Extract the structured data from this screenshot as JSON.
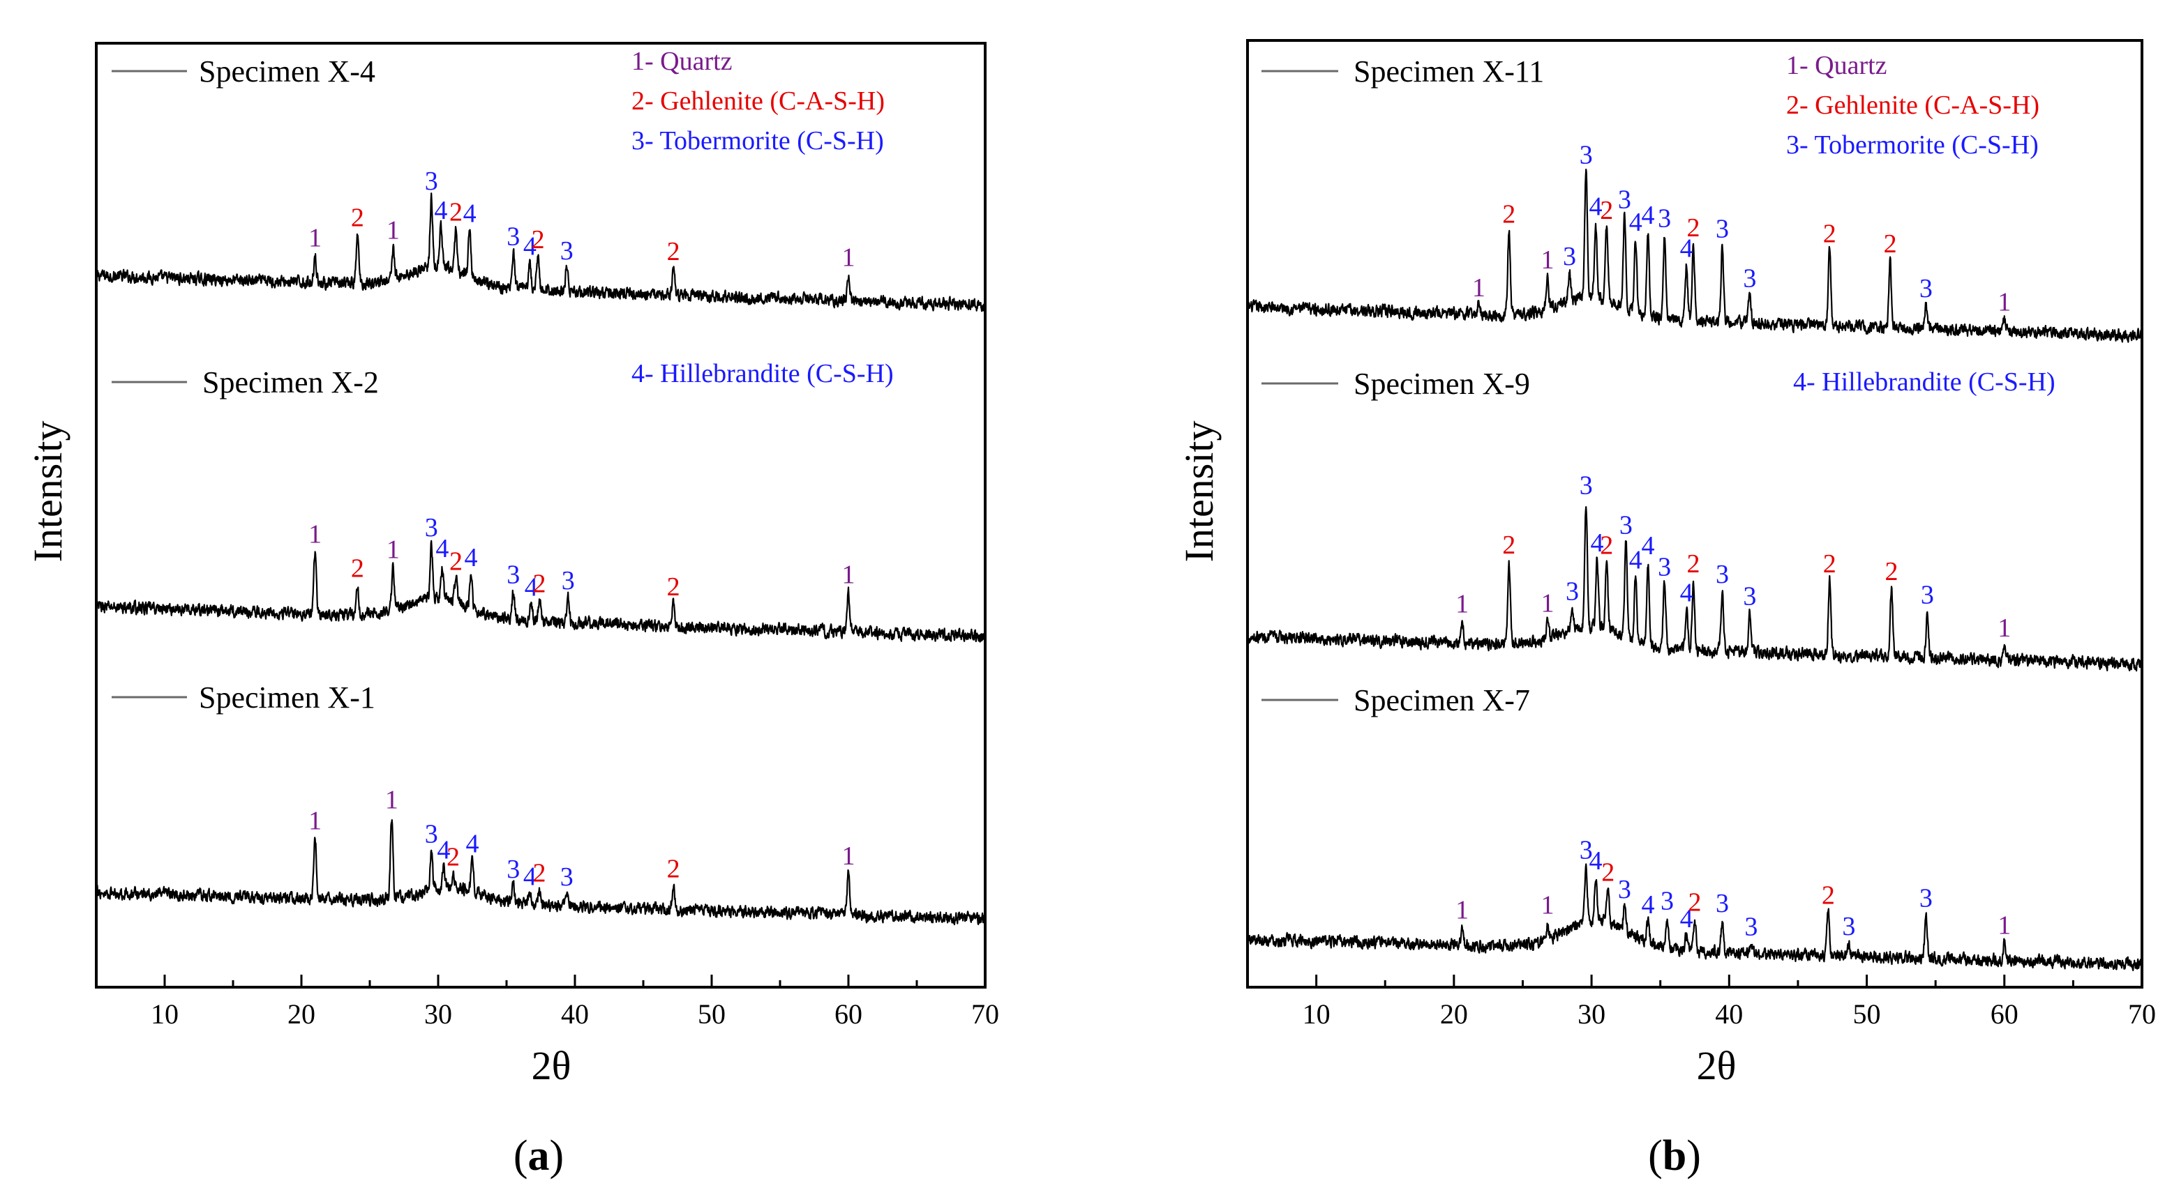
{
  "figure": {
    "x_label": "2θ",
    "y_label": "Intensity"
  },
  "phase_colors": {
    "1": "#7a1a8c",
    "2": "#e60000",
    "3": "#1a1aff",
    "4": "#1a1aff"
  },
  "chart_data": [
    {
      "type": "line",
      "panel_id": "a",
      "panel_label": "a",
      "xlim": [
        5,
        70
      ],
      "x_ticks": [
        10,
        20,
        30,
        40,
        50,
        60,
        70
      ],
      "ylabel": "Intensity",
      "xlabel": "2θ",
      "phase_key": [
        {
          "id": "1",
          "label": "1- Quartz",
          "color": "#7a1a8c",
          "row": 0
        },
        {
          "id": "2",
          "label": "2- Gehlenite (C-A-S-H)",
          "color": "#e60000",
          "row": 1
        },
        {
          "id": "3",
          "label": "3- Tobermorite (C-S-H)",
          "color": "#1a1aff",
          "row": 2
        },
        {
          "id": "4",
          "label": "4- Hillebrandite (C-S-H)",
          "color": "#1a1aff",
          "row": 3
        }
      ],
      "series": [
        {
          "name": "Specimen X-4",
          "baseline_start": 65,
          "baseline_end": 22,
          "hump_center": 30,
          "hump_height": 28,
          "peaks": [
            {
              "x": 21,
              "h": 40,
              "phase": "1",
              "label": "1"
            },
            {
              "x": 24.1,
              "h": 70,
              "phase": "2",
              "label": "2"
            },
            {
              "x": 26.7,
              "h": 45,
              "phase": "1",
              "label": "1"
            },
            {
              "x": 29.5,
              "h": 100,
              "phase": "3",
              "label": "3"
            },
            {
              "x": 30.2,
              "h": 58,
              "phase": "4",
              "label": "4"
            },
            {
              "x": 31.3,
              "h": 60,
              "phase": "2",
              "label": "2"
            },
            {
              "x": 32.3,
              "h": 66,
              "phase": "4",
              "label": "4"
            },
            {
              "x": 35.5,
              "h": 50,
              "phase": "3",
              "label": "3"
            },
            {
              "x": 36.7,
              "h": 38,
              "phase": "4",
              "label": "4"
            },
            {
              "x": 37.3,
              "h": 48,
              "phase": "2",
              "label": "2"
            },
            {
              "x": 39.4,
              "h": 34,
              "phase": "3",
              "label": "3"
            },
            {
              "x": 47.2,
              "h": 38,
              "phase": "2",
              "label": "2"
            },
            {
              "x": 60,
              "h": 38,
              "phase": "1",
              "label": "1"
            }
          ]
        },
        {
          "name": "Specimen X-2",
          "baseline_start": 55,
          "baseline_end": 12,
          "hump_center": 30,
          "hump_height": 28,
          "peaks": [
            {
              "x": 21,
              "h": 90,
              "phase": "1",
              "label": "1"
            },
            {
              "x": 24.1,
              "h": 42,
              "phase": "2",
              "label": "2"
            },
            {
              "x": 26.7,
              "h": 62,
              "phase": "1",
              "label": "1"
            },
            {
              "x": 29.5,
              "h": 78,
              "phase": "3",
              "label": "3"
            },
            {
              "x": 30.3,
              "h": 48,
              "phase": "4",
              "label": "4"
            },
            {
              "x": 31.3,
              "h": 34,
              "phase": "2",
              "label": "2"
            },
            {
              "x": 32.4,
              "h": 48,
              "phase": "4",
              "label": "4"
            },
            {
              "x": 35.5,
              "h": 40,
              "phase": "3",
              "label": "3"
            },
            {
              "x": 36.8,
              "h": 24,
              "phase": "4",
              "label": "4"
            },
            {
              "x": 37.4,
              "h": 30,
              "phase": "2",
              "label": "2"
            },
            {
              "x": 39.5,
              "h": 36,
              "phase": "3",
              "label": "3"
            },
            {
              "x": 47.2,
              "h": 32,
              "phase": "2",
              "label": "2"
            },
            {
              "x": 60,
              "h": 58,
              "phase": "1",
              "label": "1"
            }
          ]
        },
        {
          "name": "Specimen X-1",
          "baseline_start": 50,
          "baseline_end": 12,
          "hump_center": 31,
          "hump_height": 22,
          "peaks": [
            {
              "x": 21,
              "h": 88,
              "phase": "1",
              "label": "1"
            },
            {
              "x": 26.6,
              "h": 118,
              "phase": "1",
              "label": "1"
            },
            {
              "x": 29.5,
              "h": 56,
              "phase": "3",
              "label": "3"
            },
            {
              "x": 30.4,
              "h": 30,
              "phase": "4",
              "label": "4"
            },
            {
              "x": 31.1,
              "h": 20,
              "phase": "2",
              "label": "2"
            },
            {
              "x": 32.5,
              "h": 44,
              "phase": "4",
              "label": "4"
            },
            {
              "x": 35.5,
              "h": 24,
              "phase": "3",
              "label": "3"
            },
            {
              "x": 36.7,
              "h": 16,
              "phase": "4",
              "label": "4"
            },
            {
              "x": 37.4,
              "h": 22,
              "phase": "2",
              "label": "2"
            },
            {
              "x": 39.4,
              "h": 18,
              "phase": "3",
              "label": "3"
            },
            {
              "x": 47.2,
              "h": 34,
              "phase": "2",
              "label": "2"
            },
            {
              "x": 60,
              "h": 60,
              "phase": "1",
              "label": "1"
            }
          ]
        }
      ]
    },
    {
      "type": "line",
      "panel_id": "b",
      "panel_label": "b",
      "xlim": [
        5,
        70
      ],
      "x_ticks": [
        10,
        20,
        30,
        40,
        50,
        60,
        70
      ],
      "ylabel": "Intensity",
      "xlabel": "2θ",
      "phase_key": [
        {
          "id": "1",
          "label": "1- Quartz",
          "color": "#7a1a8c",
          "row": 0
        },
        {
          "id": "2",
          "label": "2- Gehlenite (C-A-S-H)",
          "color": "#e60000",
          "row": 1
        },
        {
          "id": "3",
          "label": "3- Tobermorite (C-S-H)",
          "color": "#1a1aff",
          "row": 2
        },
        {
          "id": "4",
          "label": "4- Hillebrandite (C-S-H)",
          "color": "#1a1aff",
          "row": 3
        }
      ],
      "series": [
        {
          "name": "Specimen X-11",
          "baseline_start": 60,
          "baseline_end": 18,
          "hump_center": 30,
          "hump_height": 30,
          "peaks": [
            {
              "x": 21.8,
              "h": 14,
              "phase": "1",
              "label": "1"
            },
            {
              "x": 24,
              "h": 120,
              "phase": "2",
              "label": "2"
            },
            {
              "x": 26.8,
              "h": 46,
              "phase": "1",
              "label": "1"
            },
            {
              "x": 28.4,
              "h": 40,
              "phase": "3",
              "label": "3"
            },
            {
              "x": 29.6,
              "h": 180,
              "phase": "3",
              "label": "3"
            },
            {
              "x": 30.3,
              "h": 106,
              "phase": "4",
              "label": "4"
            },
            {
              "x": 31.1,
              "h": 104,
              "phase": "2",
              "label": "2"
            },
            {
              "x": 32.4,
              "h": 130,
              "phase": "3",
              "label": "3"
            },
            {
              "x": 33.2,
              "h": 104,
              "phase": "4",
              "label": "4"
            },
            {
              "x": 34.1,
              "h": 120,
              "phase": "4",
              "label": "4"
            },
            {
              "x": 35.3,
              "h": 120,
              "phase": "3",
              "label": "3"
            },
            {
              "x": 36.9,
              "h": 80,
              "phase": "4",
              "label": "4"
            },
            {
              "x": 37.4,
              "h": 110,
              "phase": "2",
              "label": "2"
            },
            {
              "x": 39.5,
              "h": 110,
              "phase": "3",
              "label": "3"
            },
            {
              "x": 41.5,
              "h": 40,
              "phase": "3",
              "label": "3"
            },
            {
              "x": 47.3,
              "h": 108,
              "phase": "2",
              "label": "2"
            },
            {
              "x": 51.7,
              "h": 96,
              "phase": "2",
              "label": "2"
            },
            {
              "x": 54.3,
              "h": 34,
              "phase": "3",
              "label": "3"
            },
            {
              "x": 60,
              "h": 18,
              "phase": "1",
              "label": "1"
            }
          ]
        },
        {
          "name": "Specimen X-9",
          "baseline_start": 52,
          "baseline_end": 12,
          "hump_center": 30,
          "hump_height": 30,
          "peaks": [
            {
              "x": 20.6,
              "h": 32,
              "phase": "1",
              "label": "1"
            },
            {
              "x": 24,
              "h": 118,
              "phase": "2",
              "label": "2"
            },
            {
              "x": 26.8,
              "h": 26,
              "phase": "1",
              "label": "1"
            },
            {
              "x": 28.6,
              "h": 30,
              "phase": "3",
              "label": "3"
            },
            {
              "x": 29.6,
              "h": 178,
              "phase": "3",
              "label": "3"
            },
            {
              "x": 30.4,
              "h": 96,
              "phase": "4",
              "label": "4"
            },
            {
              "x": 31.1,
              "h": 96,
              "phase": "2",
              "label": "2"
            },
            {
              "x": 32.5,
              "h": 136,
              "phase": "3",
              "label": "3"
            },
            {
              "x": 33.2,
              "h": 92,
              "phase": "4",
              "label": "4"
            },
            {
              "x": 34.1,
              "h": 118,
              "phase": "4",
              "label": "4"
            },
            {
              "x": 35.3,
              "h": 92,
              "phase": "3",
              "label": "3"
            },
            {
              "x": 36.9,
              "h": 58,
              "phase": "4",
              "label": "4"
            },
            {
              "x": 37.4,
              "h": 100,
              "phase": "2",
              "label": "2"
            },
            {
              "x": 39.5,
              "h": 86,
              "phase": "3",
              "label": "3"
            },
            {
              "x": 41.5,
              "h": 56,
              "phase": "3",
              "label": "3"
            },
            {
              "x": 47.3,
              "h": 106,
              "phase": "2",
              "label": "2"
            },
            {
              "x": 51.8,
              "h": 98,
              "phase": "2",
              "label": "2"
            },
            {
              "x": 54.4,
              "h": 66,
              "phase": "3",
              "label": "3"
            },
            {
              "x": 60,
              "h": 22,
              "phase": "1",
              "label": "1"
            }
          ]
        },
        {
          "name": "Specimen X-7",
          "baseline_start": 48,
          "baseline_end": 12,
          "hump_center": 30.5,
          "hump_height": 40,
          "peaks": [
            {
              "x": 20.6,
              "h": 26,
              "phase": "1",
              "label": "1"
            },
            {
              "x": 26.8,
              "h": 26,
              "phase": "1",
              "label": "1"
            },
            {
              "x": 29.6,
              "h": 80,
              "phase": "3",
              "label": "3"
            },
            {
              "x": 30.3,
              "h": 62,
              "phase": "4",
              "label": "4"
            },
            {
              "x": 31.2,
              "h": 48,
              "phase": "2",
              "label": "2"
            },
            {
              "x": 32.4,
              "h": 34,
              "phase": "3",
              "label": "3"
            },
            {
              "x": 34.1,
              "h": 30,
              "phase": "4",
              "label": "4"
            },
            {
              "x": 35.5,
              "h": 44,
              "phase": "3",
              "label": "3"
            },
            {
              "x": 36.9,
              "h": 22,
              "phase": "4",
              "label": "4"
            },
            {
              "x": 37.5,
              "h": 46,
              "phase": "2",
              "label": "2"
            },
            {
              "x": 39.5,
              "h": 46,
              "phase": "3",
              "label": "3"
            },
            {
              "x": 41.6,
              "h": 14,
              "phase": "3",
              "label": "3"
            },
            {
              "x": 47.2,
              "h": 62,
              "phase": "2",
              "label": "2"
            },
            {
              "x": 48.7,
              "h": 18,
              "phase": "3",
              "label": "3"
            },
            {
              "x": 54.3,
              "h": 62,
              "phase": "3",
              "label": "3"
            },
            {
              "x": 60,
              "h": 26,
              "phase": "1",
              "label": "1"
            }
          ]
        }
      ]
    }
  ]
}
